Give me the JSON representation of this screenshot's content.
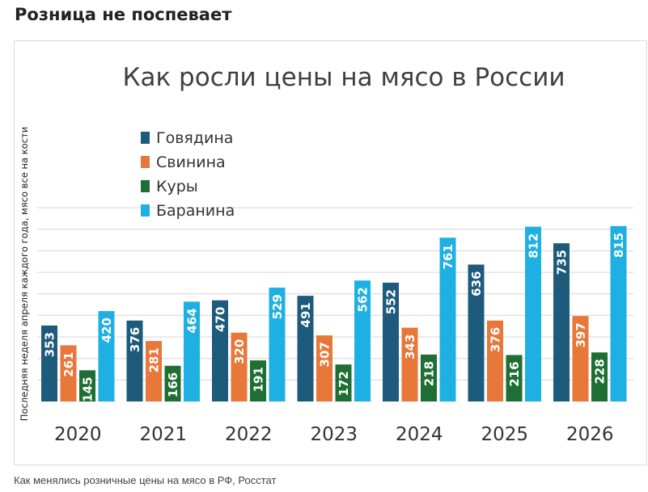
{
  "page": {
    "heading": "Розница не поспевает",
    "caption": "Как менялись розничные цены на мясо в РФ, Росстат"
  },
  "chart_data": {
    "type": "bar",
    "title": "Как росли цены на мясо в России",
    "ylabel": "Последняя неделя апреля каждого года, мясо все на кости",
    "xlabel": "",
    "categories": [
      "2020",
      "2021",
      "2022",
      "2023",
      "2024",
      "2025",
      "2026"
    ],
    "ylim": [
      0,
      900
    ],
    "grid": true,
    "legend_position": "top-left",
    "series": [
      {
        "name": "Говядина",
        "color": "#1d5a7c",
        "values": [
          353,
          376,
          470,
          491,
          552,
          636,
          735
        ]
      },
      {
        "name": "Свинина",
        "color": "#e8773a",
        "values": [
          261,
          281,
          320,
          307,
          343,
          376,
          397
        ]
      },
      {
        "name": "Куры",
        "color": "#1f6e33",
        "values": [
          145,
          166,
          191,
          172,
          218,
          216,
          228
        ]
      },
      {
        "name": "Баранина",
        "color": "#1eb0e3",
        "values": [
          420,
          464,
          529,
          562,
          761,
          812,
          815
        ]
      }
    ]
  }
}
